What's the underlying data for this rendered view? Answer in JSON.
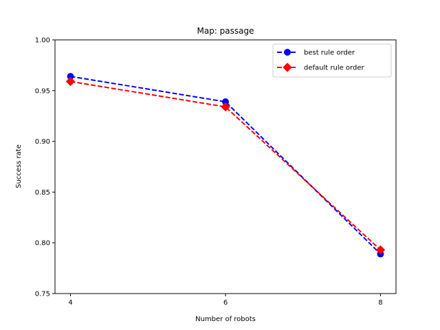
{
  "chart_data": {
    "type": "line",
    "title": "Map: passage",
    "xlabel": "Number of robots",
    "ylabel": "Success rate",
    "x": [
      4,
      6,
      8
    ],
    "xticks": [
      "4",
      "6",
      "8"
    ],
    "xlim": [
      3.8,
      8.2
    ],
    "ylim": [
      0.75,
      1.0
    ],
    "yticks": [
      "0.75",
      "0.80",
      "0.85",
      "0.90",
      "0.95",
      "1.00"
    ],
    "grid": false,
    "legend_position": "upper right",
    "series": [
      {
        "name": "best rule order",
        "values": [
          0.964,
          0.939,
          0.789
        ],
        "color": "#0000ff",
        "marker": "circle",
        "linestyle": "dashed"
      },
      {
        "name": "default rule order",
        "values": [
          0.959,
          0.934,
          0.793
        ],
        "color": "#ff0000",
        "marker": "diamond",
        "linestyle": "dashed"
      }
    ]
  }
}
